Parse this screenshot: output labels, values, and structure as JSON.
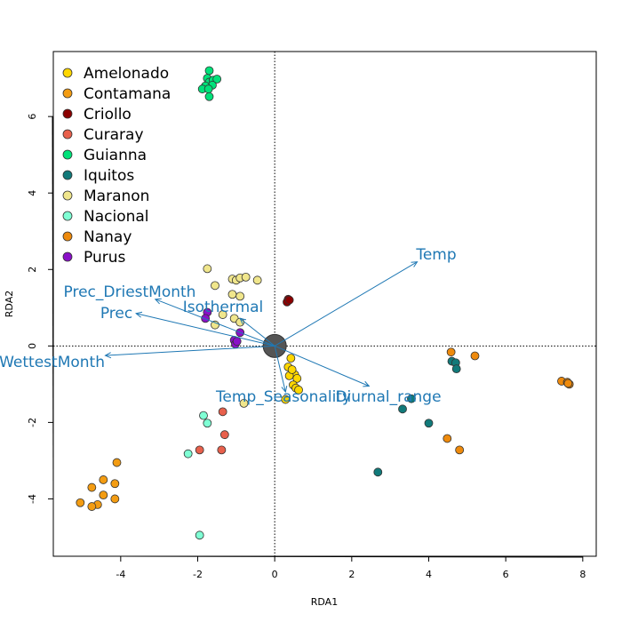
{
  "chart_data": {
    "type": "scatter",
    "subtype": "rda-biplot",
    "title": "",
    "xlabel": "RDA1",
    "ylabel": "RDA2",
    "xlim": [
      -5.75,
      8.35
    ],
    "ylim": [
      -5.5,
      7.7
    ],
    "xticks": [
      -4,
      -2,
      0,
      2,
      4,
      6,
      8
    ],
    "yticks": [
      -4,
      -2,
      0,
      2,
      4,
      6
    ],
    "grid": false,
    "reference_lines": "dotted lines at x=0 and y=0",
    "legend_position": "top-left",
    "arrow_color": "#1f78b4",
    "series": [
      {
        "name": "Amelonado",
        "color": "#FFD700",
        "points": [
          [
            0.42,
            -0.32
          ],
          [
            0.35,
            -0.55
          ],
          [
            0.52,
            -0.75
          ],
          [
            0.58,
            -0.85
          ],
          [
            0.48,
            -1.02
          ],
          [
            0.55,
            -1.1
          ],
          [
            0.62,
            -1.15
          ],
          [
            0.28,
            -1.4
          ],
          [
            0.38,
            -0.78
          ],
          [
            0.45,
            -0.62
          ]
        ]
      },
      {
        "name": "Contamana",
        "color": "#F39C12",
        "points": [
          [
            -4.1,
            -3.05
          ],
          [
            -4.45,
            -3.5
          ],
          [
            -4.15,
            -3.6
          ],
          [
            -4.75,
            -3.7
          ],
          [
            -4.45,
            -3.9
          ],
          [
            -4.15,
            -4.0
          ],
          [
            -5.05,
            -4.1
          ],
          [
            -4.6,
            -4.15
          ],
          [
            -4.75,
            -4.2
          ]
        ]
      },
      {
        "name": "Criollo",
        "color": "#8B0000",
        "points": [
          [
            0.35,
            1.22
          ],
          [
            0.32,
            1.15
          ],
          [
            0.38,
            1.2
          ]
        ]
      },
      {
        "name": "Curaray",
        "color": "#E8604C",
        "points": [
          [
            -1.35,
            -1.72
          ],
          [
            -1.3,
            -2.32
          ],
          [
            -1.38,
            -2.72
          ],
          [
            -1.95,
            -2.72
          ]
        ]
      },
      {
        "name": "Guianna",
        "color": "#00E27A",
        "points": [
          [
            -1.7,
            7.2
          ],
          [
            -1.75,
            7.0
          ],
          [
            -1.7,
            6.9
          ],
          [
            -1.6,
            6.95
          ],
          [
            -1.5,
            6.98
          ],
          [
            -1.62,
            6.82
          ],
          [
            -1.8,
            6.8
          ],
          [
            -1.88,
            6.72
          ],
          [
            -1.72,
            6.72
          ],
          [
            -1.7,
            6.52
          ]
        ]
      },
      {
        "name": "Iquitos",
        "color": "#117A7A",
        "points": [
          [
            3.55,
            -1.38
          ],
          [
            3.32,
            -1.65
          ],
          [
            4.0,
            -2.02
          ],
          [
            4.6,
            -0.4
          ],
          [
            4.7,
            -0.44
          ],
          [
            4.72,
            -0.6
          ],
          [
            2.68,
            -3.3
          ]
        ]
      },
      {
        "name": "Maranon",
        "color": "#F0E68C",
        "points": [
          [
            -1.75,
            2.02
          ],
          [
            -1.1,
            1.75
          ],
          [
            -1.0,
            1.72
          ],
          [
            -0.9,
            1.78
          ],
          [
            -0.75,
            1.8
          ],
          [
            -0.45,
            1.72
          ],
          [
            -1.55,
            1.58
          ],
          [
            -1.1,
            1.35
          ],
          [
            -0.9,
            1.3
          ],
          [
            -1.35,
            0.82
          ],
          [
            -1.05,
            0.72
          ],
          [
            -0.9,
            0.62
          ],
          [
            -1.55,
            0.55
          ],
          [
            -0.8,
            -1.5
          ]
        ]
      },
      {
        "name": "Nacional",
        "color": "#7FFFD4",
        "points": [
          [
            -1.85,
            -1.82
          ],
          [
            -1.75,
            -2.02
          ],
          [
            -2.25,
            -2.82
          ],
          [
            -1.95,
            -4.95
          ]
        ]
      },
      {
        "name": "Nanay",
        "color": "#EE8A0C",
        "points": [
          [
            4.58,
            -0.16
          ],
          [
            5.2,
            -0.26
          ],
          [
            4.48,
            -2.42
          ],
          [
            4.8,
            -2.72
          ],
          [
            7.45,
            -0.92
          ],
          [
            7.6,
            -0.95
          ],
          [
            7.65,
            -1.0
          ],
          [
            7.62,
            -0.98
          ]
        ]
      },
      {
        "name": "Purus",
        "color": "#8A10C8",
        "points": [
          [
            -1.75,
            0.88
          ],
          [
            -1.8,
            0.72
          ],
          [
            -0.9,
            0.35
          ],
          [
            -1.05,
            0.15
          ],
          [
            -1.02,
            0.05
          ],
          [
            -0.98,
            0.12
          ]
        ]
      }
    ],
    "centroid_cluster": {
      "x": 0.0,
      "y": 0.0,
      "color": "#555555"
    },
    "vectors": [
      {
        "name": "Temp",
        "x": 3.7,
        "y": 2.2
      },
      {
        "name": "Prec_DriestMonth",
        "x": -3.1,
        "y": 1.22
      },
      {
        "name": "Prec",
        "x": -3.6,
        "y": 0.85
      },
      {
        "name": "Isothermal",
        "x": -0.9,
        "y": 0.72
      },
      {
        "name": "Prec_WettestMonth",
        "x": -4.4,
        "y": -0.25
      },
      {
        "name": "Temp_Seasonality",
        "x": 0.28,
        "y": -1.2
      },
      {
        "name": "Diurnal_range",
        "x": 2.45,
        "y": -1.05
      }
    ]
  }
}
